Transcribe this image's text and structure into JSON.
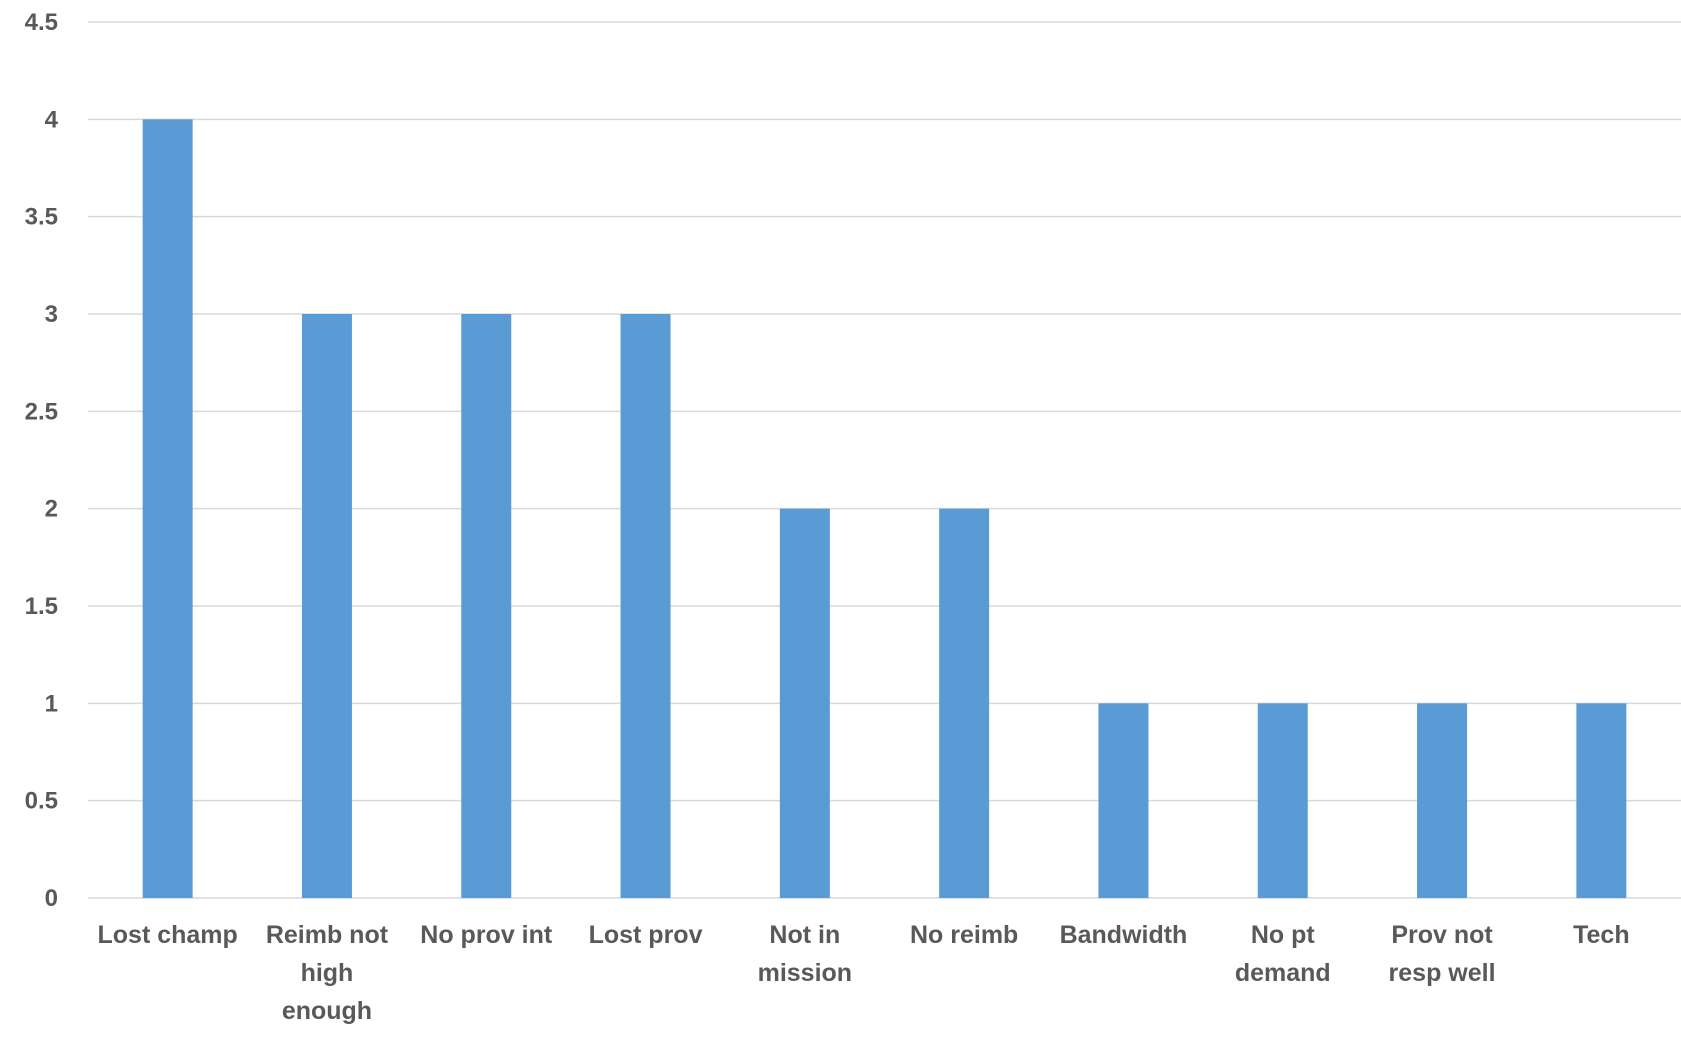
{
  "chart_data": {
    "type": "bar",
    "title": "",
    "xlabel": "",
    "ylabel": "",
    "categories": [
      "Lost champ",
      "Reimb not high enough",
      "No prov int",
      "Lost prov",
      "Not in mission",
      "No reimb",
      "Bandwidth",
      "No pt demand",
      "Prov not resp well",
      "Tech"
    ],
    "category_label_lines": [
      [
        "Lost champ"
      ],
      [
        "Reimb not",
        "high",
        "enough"
      ],
      [
        "No prov int"
      ],
      [
        "Lost prov"
      ],
      [
        "Not in",
        "mission"
      ],
      [
        "No reimb"
      ],
      [
        "Bandwidth"
      ],
      [
        "No pt",
        "demand"
      ],
      [
        "Prov not",
        "resp well"
      ],
      [
        "Tech"
      ]
    ],
    "values": [
      4,
      3,
      3,
      3,
      2,
      2,
      1,
      1,
      1,
      1
    ],
    "ylim": [
      0,
      4.5
    ],
    "yticks": [
      "0",
      "0.5",
      "1",
      "1.5",
      "2",
      "2.5",
      "3",
      "3.5",
      "4",
      "4.5"
    ],
    "grid": true,
    "legend": "none",
    "colors": {
      "bar": "#5B9BD5",
      "grid": "#D9D9D9",
      "text": "#595959"
    }
  }
}
